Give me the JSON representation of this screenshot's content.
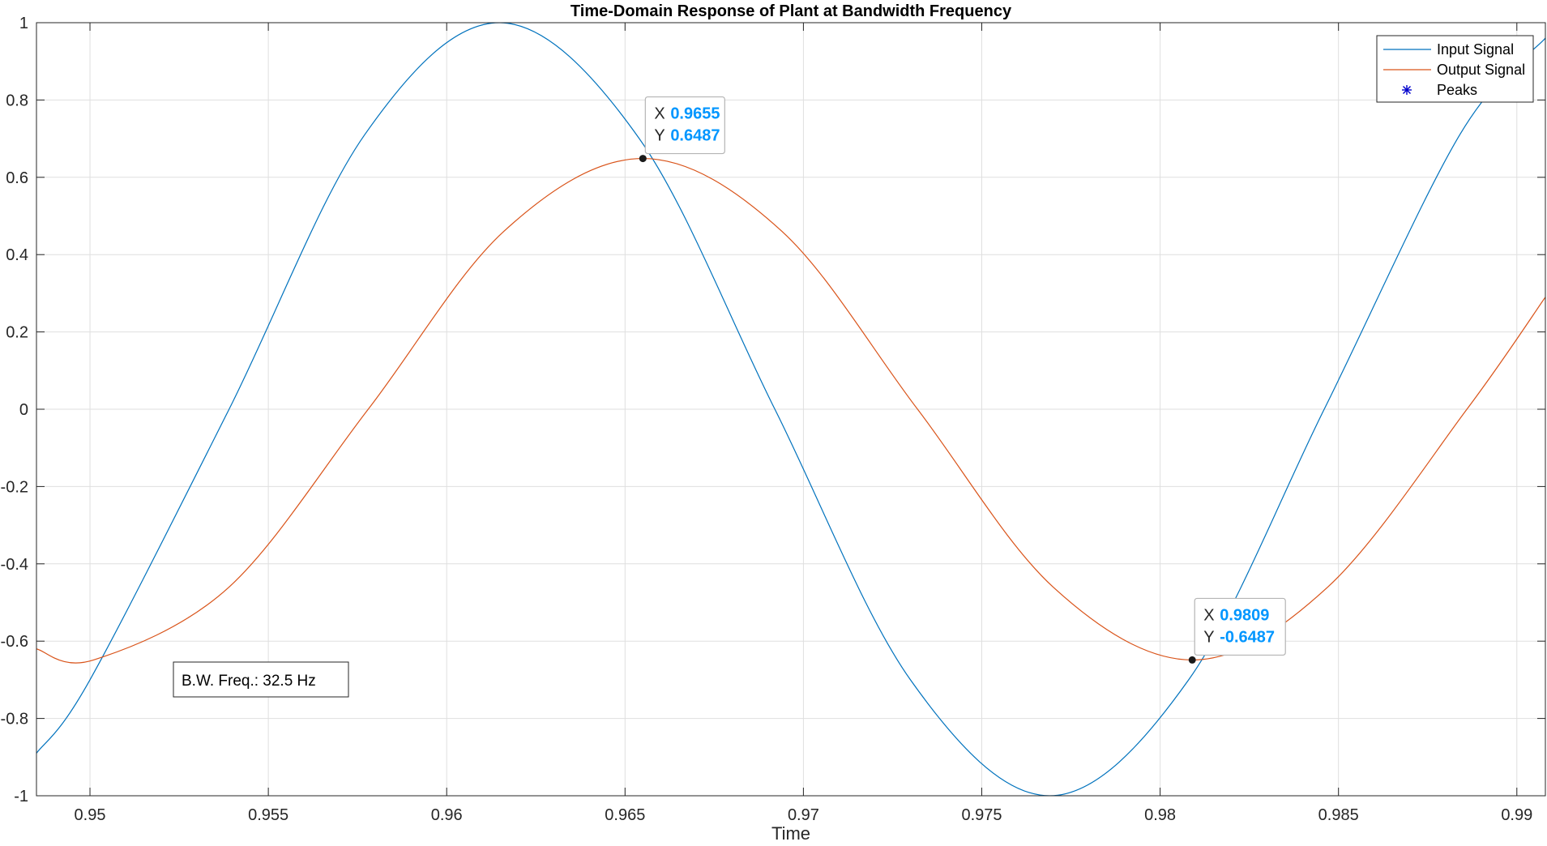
{
  "chart_data": {
    "type": "line",
    "title": "Time-Domain Response of Plant at Bandwidth Frequency",
    "xlabel": "Time",
    "ylabel": "",
    "xlim": [
      0.9485,
      0.9908
    ],
    "ylim": [
      -1,
      1
    ],
    "x_ticks": [
      0.95,
      0.955,
      0.96,
      0.965,
      0.97,
      0.975,
      0.98,
      0.985,
      0.99
    ],
    "x_tick_labels": [
      "0.95",
      "0.955",
      "0.96",
      "0.965",
      "0.97",
      "0.975",
      "0.98",
      "0.985",
      "0.99"
    ],
    "y_ticks": [
      -1,
      -0.8,
      -0.6,
      -0.4,
      -0.2,
      0,
      0.2,
      0.4,
      0.6,
      0.8,
      1
    ],
    "y_tick_labels": [
      "-1",
      "-0.8",
      "-0.6",
      "-0.4",
      "-0.2",
      "0",
      "0.2",
      "0.4",
      "0.6",
      "0.8",
      "1"
    ],
    "grid": true,
    "legend_position": "top-right",
    "series": [
      {
        "name": "Input Signal",
        "color": "#0072BD",
        "frequency_hz": 32.5,
        "amplitude": 1,
        "x": [
          0.9485,
          0.95,
          0.9539,
          0.9577,
          0.9615,
          0.9654,
          0.9692,
          0.973,
          0.9769,
          0.9808,
          0.9846,
          0.9884,
          0.9908
        ],
        "y": [
          -0.89,
          -0.7,
          0.0,
          0.71,
          1.0,
          0.7,
          0.0,
          -0.7,
          -1.0,
          -0.7,
          0.0,
          0.71,
          0.96
        ]
      },
      {
        "name": "Output Signal",
        "color": "#D95319",
        "frequency_hz": 32.5,
        "amplitude": 0.6487,
        "x": [
          0.9485,
          0.9501,
          0.9539,
          0.9578,
          0.9616,
          0.9655,
          0.9694,
          0.9732,
          0.977,
          0.9809,
          0.9847,
          0.9886,
          0.9908
        ],
        "y": [
          -0.62,
          -0.6487,
          -0.46,
          0.0,
          0.46,
          0.6487,
          0.46,
          0.0,
          -0.46,
          -0.6487,
          -0.46,
          0.0,
          0.29
        ]
      },
      {
        "name": "Peaks",
        "color": "#0000CC",
        "marker": "*",
        "x": [],
        "y": []
      }
    ],
    "datatips": [
      {
        "x_label": "X",
        "x_value": "0.9655",
        "y_label": "Y",
        "y_value": "0.6487",
        "x": 0.9655,
        "y": 0.6487
      },
      {
        "x_label": "X",
        "x_value": "0.9809",
        "y_label": "Y",
        "y_value": "-0.6487",
        "x": 0.9809,
        "y": -0.6487
      }
    ],
    "annotation": "B.W. Freq.: 32.5 Hz"
  }
}
